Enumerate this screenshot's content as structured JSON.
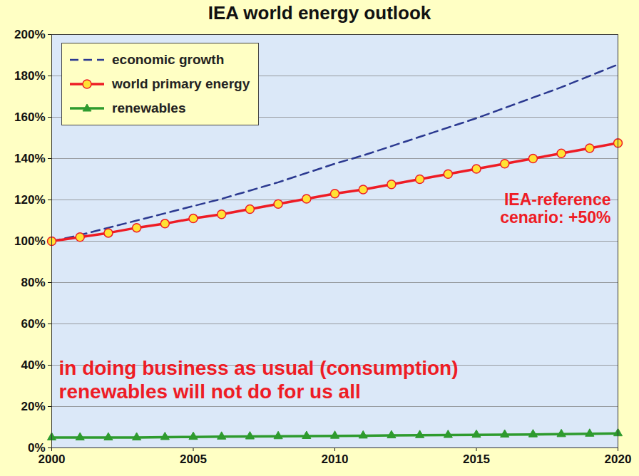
{
  "chart_data": {
    "type": "line",
    "title": "IEA world energy outlook",
    "x": [
      2000,
      2001,
      2002,
      2003,
      2004,
      2005,
      2006,
      2007,
      2008,
      2009,
      2010,
      2011,
      2012,
      2013,
      2014,
      2015,
      2016,
      2017,
      2018,
      2019,
      2020
    ],
    "series": [
      {
        "name": "economic growth",
        "color": "#2b3990",
        "line_style": "dashed",
        "marker": "none",
        "values": [
          100,
          103,
          106.5,
          110,
          113.5,
          117,
          120.5,
          124.5,
          128.5,
          133,
          137.5,
          141.5,
          146,
          150.5,
          155,
          159.5,
          164.5,
          169.5,
          174.5,
          180,
          185.5
        ]
      },
      {
        "name": "world primary energy",
        "color": "#ee1c25",
        "line_style": "solid",
        "marker": "circle",
        "values": [
          100,
          102,
          104,
          106.5,
          108.5,
          111,
          113,
          115.5,
          118,
          120.5,
          123,
          125,
          127.5,
          130,
          132.5,
          135,
          137.5,
          140,
          142.5,
          145,
          147.5
        ]
      },
      {
        "name": "renewables",
        "color": "#2e9b2e",
        "line_style": "solid",
        "marker": "triangle",
        "values": [
          5,
          5,
          5,
          5,
          5.2,
          5.3,
          5.4,
          5.5,
          5.6,
          5.7,
          5.8,
          5.9,
          6,
          6.1,
          6.2,
          6.3,
          6.4,
          6.5,
          6.6,
          6.8,
          7
        ]
      }
    ],
    "xlim": [
      2000,
      2020
    ],
    "xticks": [
      2000,
      2005,
      2010,
      2015,
      2020
    ],
    "ylim": [
      0,
      200
    ],
    "yticks": [
      {
        "value": 0,
        "label": "0%"
      },
      {
        "value": 20,
        "label": "20%"
      },
      {
        "value": 40,
        "label": "40%"
      },
      {
        "value": 60,
        "label": "60%"
      },
      {
        "value": 80,
        "label": "80%"
      },
      {
        "value": 100,
        "label": "100%"
      },
      {
        "value": 120,
        "label": "120%"
      },
      {
        "value": 140,
        "label": "140%"
      },
      {
        "value": 160,
        "label": "160%"
      },
      {
        "value": 180,
        "label": "180%"
      },
      {
        "value": 200,
        "label": "200%"
      }
    ],
    "grid": true,
    "legend": "top-left",
    "annotations": [
      {
        "lines": [
          "IEA-reference",
          "cenario: +50%"
        ]
      },
      {
        "lines": [
          "in doing business as usual (consumption)",
          "renewables will not do for us all"
        ]
      }
    ]
  }
}
